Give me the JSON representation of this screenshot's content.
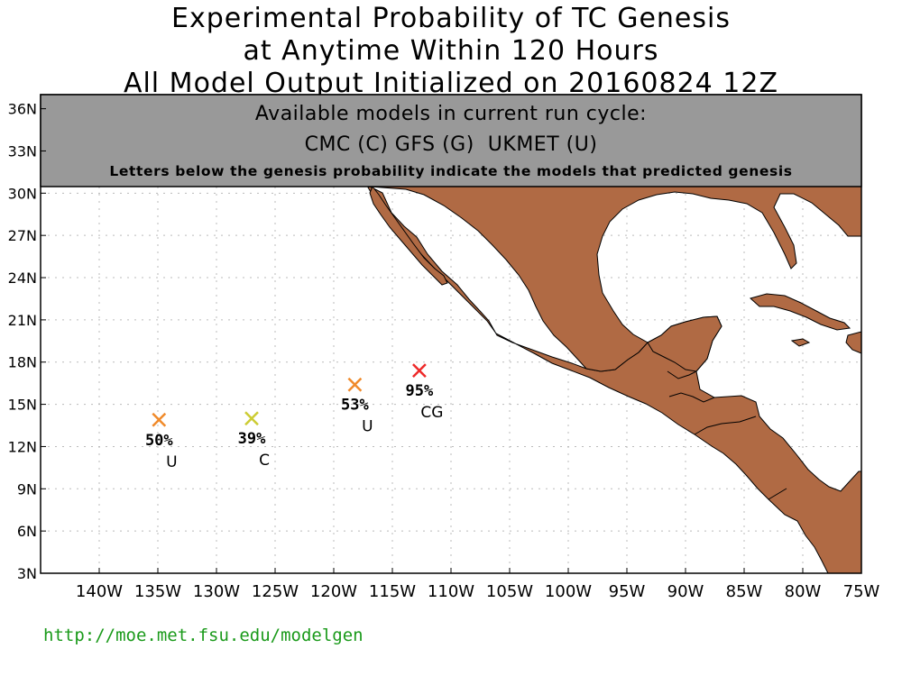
{
  "title": {
    "line1": "Experimental Probability of TC Genesis",
    "line2": "at Anytime Within 120 Hours",
    "line3": "All Model Output Initialized on 20160824 12Z"
  },
  "banner": {
    "line1": "Available models in current run cycle:",
    "line2": "CMC (C) GFS (G)  UKMET (U)",
    "line3": "Letters below the genesis probability indicate the models that predicted genesis"
  },
  "axes": {
    "lon_range": [
      -145,
      -75
    ],
    "lat_range": [
      3,
      37
    ],
    "lon_ticks": [
      {
        "value": -140,
        "label": "140W"
      },
      {
        "value": -135,
        "label": "135W"
      },
      {
        "value": -130,
        "label": "130W"
      },
      {
        "value": -125,
        "label": "125W"
      },
      {
        "value": -120,
        "label": "120W"
      },
      {
        "value": -115,
        "label": "115W"
      },
      {
        "value": -110,
        "label": "110W"
      },
      {
        "value": -105,
        "label": "105W"
      },
      {
        "value": -100,
        "label": "100W"
      },
      {
        "value": -95,
        "label": "95W"
      },
      {
        "value": -90,
        "label": "90W"
      },
      {
        "value": -85,
        "label": "85W"
      },
      {
        "value": -80,
        "label": "80W"
      },
      {
        "value": -75,
        "label": "75W"
      }
    ],
    "lat_ticks": [
      {
        "value": 3,
        "label": "3N"
      },
      {
        "value": 6,
        "label": "6N"
      },
      {
        "value": 9,
        "label": "9N"
      },
      {
        "value": 12,
        "label": "12N"
      },
      {
        "value": 15,
        "label": "15N"
      },
      {
        "value": 18,
        "label": "18N"
      },
      {
        "value": 21,
        "label": "21N"
      },
      {
        "value": 24,
        "label": "24N"
      },
      {
        "value": 27,
        "label": "27N"
      },
      {
        "value": 30,
        "label": "30N"
      },
      {
        "value": 33,
        "label": "33N"
      },
      {
        "value": 36,
        "label": "36N"
      }
    ],
    "grid": true
  },
  "genesis_points": [
    {
      "lon": -134.9,
      "lat": 13.9,
      "probability": "50%",
      "models": "U",
      "color": "#f08a2a"
    },
    {
      "lon": -127.0,
      "lat": 14.0,
      "probability": "39%",
      "models": "C",
      "color": "#cccc33"
    },
    {
      "lon": -118.2,
      "lat": 16.4,
      "probability": "53%",
      "models": "U",
      "color": "#f08a2a"
    },
    {
      "lon": -112.7,
      "lat": 17.4,
      "probability": "95%",
      "models": "CG",
      "color": "#ee2a2a"
    }
  ],
  "colors": {
    "land": "#b06a44",
    "banner": "#999999",
    "url": "#1a9a1a"
  },
  "footer": {
    "url": "http://moe.met.fsu.edu/modelgen"
  }
}
